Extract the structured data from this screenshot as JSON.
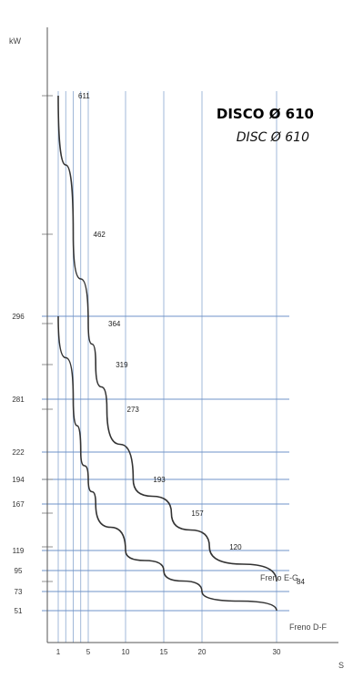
{
  "chart_data": {
    "type": "line",
    "title": "DISCO Ø 610",
    "subtitle": "DISC Ø 610",
    "ylabel": "kW",
    "xlabel": "S",
    "x_ticks": [
      1,
      5,
      10,
      15,
      20,
      30
    ],
    "y_ticks": [
      296,
      281,
      222,
      194,
      167,
      119,
      95,
      73,
      51
    ],
    "grid": true,
    "series": [
      {
        "name": "Freno E-G",
        "color": "#333333",
        "points": [
          [
            1,
            611
          ],
          [
            3,
            462
          ],
          [
            5,
            364
          ],
          [
            6,
            319
          ],
          [
            7.5,
            273
          ],
          [
            11,
            193
          ],
          [
            16,
            157
          ],
          [
            21,
            120
          ],
          [
            30,
            84
          ]
        ],
        "labels": [
          "611",
          "462",
          "364",
          "319",
          "273",
          "193",
          "157",
          "120",
          "84"
        ]
      },
      {
        "name": "Freno D-F",
        "color": "#333333",
        "points": [
          [
            1,
            296
          ],
          [
            3,
            281
          ],
          [
            4,
            222
          ],
          [
            5,
            194
          ],
          [
            6,
            167
          ],
          [
            10,
            119
          ],
          [
            15,
            95
          ],
          [
            20,
            73
          ],
          [
            30,
            51
          ]
        ]
      }
    ]
  }
}
